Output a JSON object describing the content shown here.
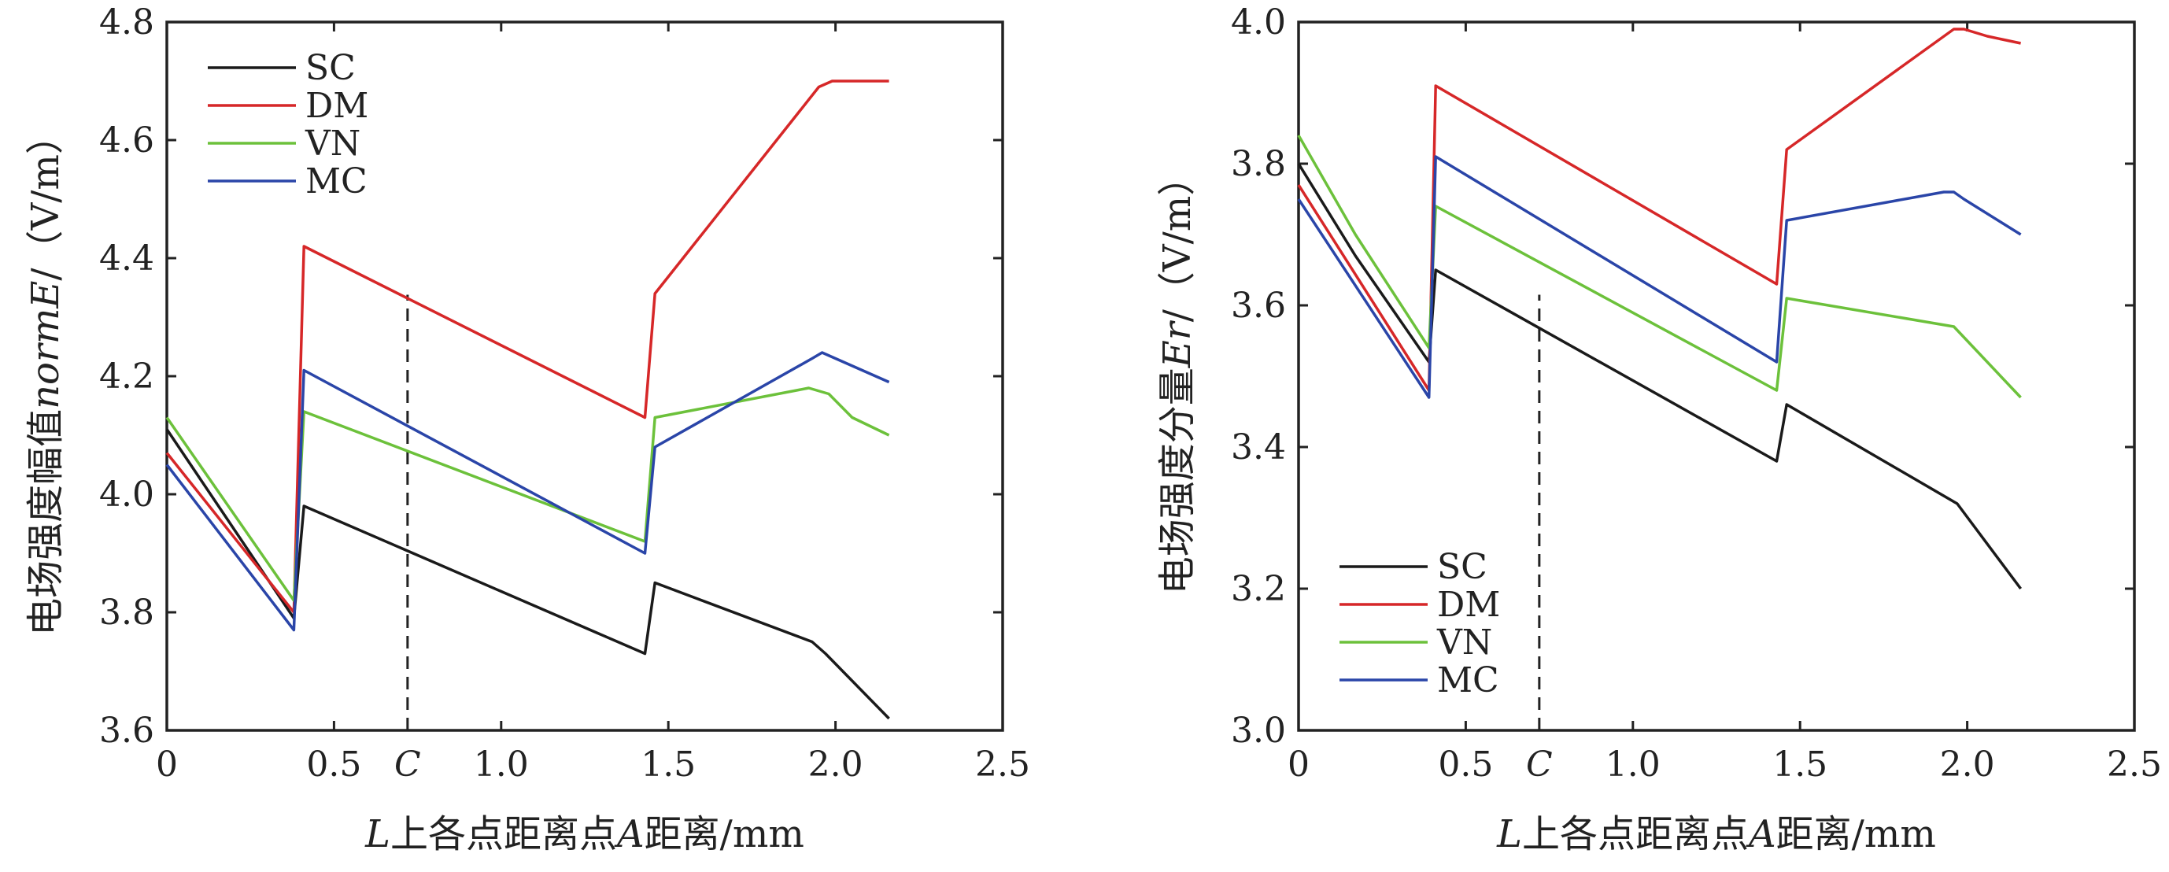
{
  "colors": {
    "SC": "#1a1a1a",
    "DM": "#d62728",
    "VN": "#6cc13b",
    "MC": "#2a45a8",
    "marker": "#222222"
  },
  "chart_data": [
    {
      "type": "line",
      "xlabel": {
        "italic_prefix": "L",
        "middle": "上各点距离点",
        "italic_mid": "A",
        "suffix": "距离/mm"
      },
      "ylabel": {
        "prefix": "电场强度幅值",
        "italic": "normE",
        "suffix": "/（V/m）"
      },
      "xlim": [
        0,
        2.5
      ],
      "ylim": [
        3.6,
        4.8
      ],
      "x_ticks": [
        "0",
        "0.5",
        "C",
        "1.0",
        "1.5",
        "2.0",
        "2.5"
      ],
      "x_tick_values": [
        0,
        0.5,
        0.72,
        1.0,
        1.5,
        2.0,
        2.5
      ],
      "y_ticks": [
        "3.6",
        "3.8",
        "4.0",
        "4.2",
        "4.4",
        "4.6",
        "4.8"
      ],
      "y_tick_values": [
        3.6,
        3.8,
        4.0,
        4.2,
        4.4,
        4.6,
        4.8
      ],
      "marker_x": 0.72,
      "legend_position": "top-left",
      "series": [
        {
          "name": "SC",
          "x": [
            0,
            0.38,
            0.41,
            1.43,
            1.46,
            1.93,
            1.97,
            2.16
          ],
          "y": [
            4.11,
            3.79,
            3.98,
            3.73,
            3.85,
            3.75,
            3.73,
            3.62
          ]
        },
        {
          "name": "DM",
          "x": [
            0,
            0.38,
            0.41,
            1.43,
            1.46,
            1.95,
            1.99,
            2.06,
            2.16
          ],
          "y": [
            4.07,
            3.8,
            4.42,
            4.13,
            4.34,
            4.69,
            4.7,
            4.7,
            4.7
          ]
        },
        {
          "name": "VN",
          "x": [
            0,
            0.38,
            0.41,
            1.43,
            1.46,
            1.92,
            1.98,
            2.05,
            2.16
          ],
          "y": [
            4.13,
            3.82,
            4.14,
            3.92,
            4.13,
            4.18,
            4.17,
            4.13,
            4.1
          ]
        },
        {
          "name": "MC",
          "x": [
            0,
            0.38,
            0.41,
            1.43,
            1.46,
            1.93,
            1.96,
            2.16
          ],
          "y": [
            4.05,
            3.77,
            4.21,
            3.9,
            4.08,
            4.23,
            4.24,
            4.19
          ]
        }
      ]
    },
    {
      "type": "line",
      "xlabel": {
        "italic_prefix": "L",
        "middle": "上各点距离点",
        "italic_mid": "A",
        "suffix": "距离/mm"
      },
      "ylabel": {
        "prefix": "电场强度分量",
        "italic": "Er",
        "suffix": "/（V/m）"
      },
      "xlim": [
        0,
        2.5
      ],
      "ylim": [
        3.0,
        4.0
      ],
      "x_ticks": [
        "0",
        "0.5",
        "C",
        "1.0",
        "1.5",
        "2.0",
        "2.5"
      ],
      "x_tick_values": [
        0,
        0.5,
        0.72,
        1.0,
        1.5,
        2.0,
        2.5
      ],
      "y_ticks": [
        "3.0",
        "3.2",
        "3.4",
        "3.6",
        "3.8",
        "4.0"
      ],
      "y_tick_values": [
        3.0,
        3.2,
        3.4,
        3.6,
        3.8,
        4.0
      ],
      "marker_x": 0.72,
      "legend_position": "bottom-left",
      "series": [
        {
          "name": "SC",
          "x": [
            0,
            0.17,
            0.39,
            0.41,
            1.43,
            1.46,
            1.97,
            2.16
          ],
          "y": [
            3.8,
            3.67,
            3.52,
            3.65,
            3.38,
            3.46,
            3.32,
            3.2
          ]
        },
        {
          "name": "DM",
          "x": [
            0,
            0.39,
            0.41,
            1.43,
            1.46,
            1.96,
            1.99,
            2.06,
            2.16
          ],
          "y": [
            3.77,
            3.48,
            3.91,
            3.63,
            3.82,
            3.99,
            3.99,
            3.98,
            3.97
          ]
        },
        {
          "name": "VN",
          "x": [
            0,
            0.17,
            0.39,
            0.41,
            1.43,
            1.46,
            1.96,
            2.16
          ],
          "y": [
            3.84,
            3.7,
            3.54,
            3.74,
            3.48,
            3.61,
            3.57,
            3.47
          ]
        },
        {
          "name": "MC",
          "x": [
            0,
            0.39,
            0.41,
            1.43,
            1.46,
            1.93,
            1.96,
            1.99,
            2.16
          ],
          "y": [
            3.75,
            3.47,
            3.81,
            3.52,
            3.72,
            3.76,
            3.76,
            3.75,
            3.7
          ]
        }
      ]
    }
  ]
}
